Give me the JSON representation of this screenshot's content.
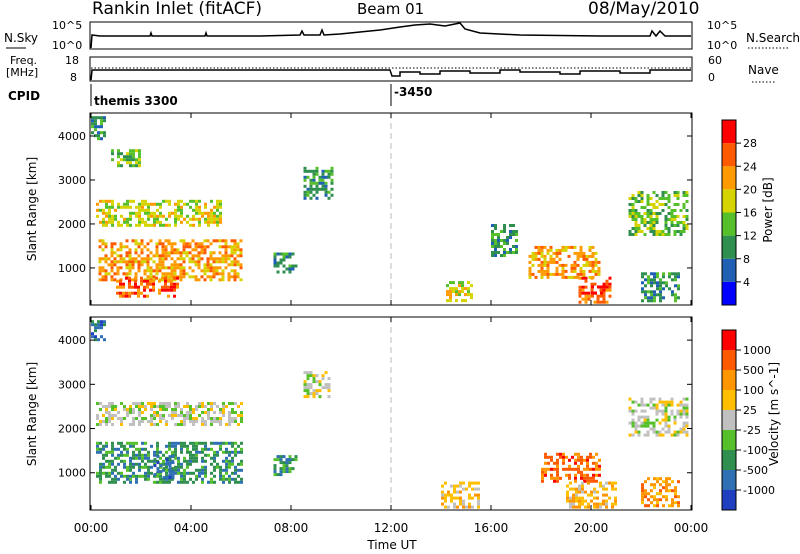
{
  "header": {
    "title": "Rankin Inlet (fitACF)",
    "beam": "Beam 01",
    "date": "08/May/2010"
  },
  "nsky_panel": {
    "left_label": "N.Sky",
    "right_label": "N.Search",
    "left_ticks": [
      "10^5",
      "10^0"
    ],
    "right_ticks": [
      "10^5",
      "10^0"
    ]
  },
  "freq_panel": {
    "left_label_top": "Freq.",
    "left_label_bottom": "[MHz]",
    "right_label": "Nave",
    "left_ticks": [
      "18",
      "8"
    ],
    "right_ticks": [
      "60",
      "0"
    ]
  },
  "cpid_panel": {
    "label": "CPID",
    "mode_1": "themis 3300",
    "mode_2": "-3450"
  },
  "axes": {
    "ylabel": "Slant Range [km]",
    "xlabel": "Time UT",
    "x_ticks": [
      "00:00",
      "04:00",
      "08:00",
      "12:00",
      "16:00",
      "20:00",
      "00:00"
    ],
    "y_ticks": [
      "1000",
      "2000",
      "3000",
      "4000"
    ]
  },
  "power_colorbar": {
    "label": "Power [dB]",
    "ticks": [
      "4",
      "8",
      "12",
      "16",
      "20",
      "24",
      "28"
    ],
    "colors": [
      "#0000ff",
      "#1f5fb4",
      "#2f8f4f",
      "#55c02a",
      "#d6d400",
      "#ff9a00",
      "#ff5a00",
      "#ff0000"
    ]
  },
  "velocity_colorbar": {
    "label": "Velocity [m s^-1]",
    "ticks": [
      "1000",
      "500",
      "100",
      "25",
      "-25",
      "-100",
      "-500",
      "-1000"
    ],
    "colors": [
      "#1f3fc0",
      "#2f6fb4",
      "#2f8f4f",
      "#55c02a",
      "#c0c0c0",
      "#ffbf00",
      "#ff9500",
      "#ff5a00",
      "#ff0000"
    ]
  },
  "chart_data": [
    {
      "type": "heatmap",
      "name": "power",
      "xlim": [
        0,
        24
      ],
      "ylim": [
        180,
        4500
      ],
      "regions": [
        {
          "t0": 0.0,
          "t1": 0.5,
          "r0": 3950,
          "r1": 4450,
          "level": 2
        },
        {
          "t0": 0.8,
          "t1": 1.9,
          "r0": 3300,
          "r1": 3700,
          "level": 3
        },
        {
          "t0": 0.2,
          "t1": 5.2,
          "r0": 2000,
          "r1": 2550,
          "level": 4
        },
        {
          "t0": 0.3,
          "t1": 6.0,
          "r0": 750,
          "r1": 1650,
          "level": 5
        },
        {
          "t0": 1.0,
          "t1": 3.5,
          "r0": 350,
          "r1": 800,
          "level": 6
        },
        {
          "t0": 8.5,
          "t1": 9.6,
          "r0": 2600,
          "r1": 3300,
          "level": 2
        },
        {
          "t0": 7.3,
          "t1": 8.2,
          "r0": 900,
          "r1": 1350,
          "level": 2
        },
        {
          "t0": 14.2,
          "t1": 15.2,
          "r0": 250,
          "r1": 700,
          "level": 4
        },
        {
          "t0": 17.5,
          "t1": 20.3,
          "r0": 750,
          "r1": 1500,
          "level": 5
        },
        {
          "t0": 19.5,
          "t1": 20.8,
          "r0": 250,
          "r1": 800,
          "level": 6
        },
        {
          "t0": 20.0,
          "t1": 20.6,
          "r0": 350,
          "r1": 600,
          "level": 7
        },
        {
          "t0": 21.5,
          "t1": 23.8,
          "r0": 1750,
          "r1": 2750,
          "level": 3
        },
        {
          "t0": 16.0,
          "t1": 17.0,
          "r0": 1300,
          "r1": 2000,
          "level": 2
        },
        {
          "t0": 22.0,
          "t1": 23.5,
          "r0": 250,
          "r1": 900,
          "level": 2
        }
      ]
    },
    {
      "type": "heatmap",
      "name": "velocity",
      "xlim": [
        0,
        24
      ],
      "ylim": [
        180,
        4500
      ],
      "regions": [
        {
          "t0": 0.0,
          "t1": 0.5,
          "r0": 4000,
          "r1": 4450,
          "level": 1
        },
        {
          "t0": 0.2,
          "t1": 6.0,
          "r0": 2100,
          "r1": 2600,
          "level": 4
        },
        {
          "t0": 0.2,
          "t1": 6.0,
          "r0": 800,
          "r1": 1700,
          "level": 2
        },
        {
          "t0": 2.5,
          "t1": 3.3,
          "r0": 900,
          "r1": 1400,
          "level": 1
        },
        {
          "t0": 8.5,
          "t1": 9.5,
          "r0": 2700,
          "r1": 3300,
          "level": 4
        },
        {
          "t0": 7.3,
          "t1": 8.2,
          "r0": 950,
          "r1": 1400,
          "level": 2
        },
        {
          "t0": 14.0,
          "t1": 15.5,
          "r0": 250,
          "r1": 800,
          "level": 5
        },
        {
          "t0": 18.0,
          "t1": 20.3,
          "r0": 800,
          "r1": 1450,
          "level": 7
        },
        {
          "t0": 19.0,
          "t1": 21.0,
          "r0": 250,
          "r1": 800,
          "level": 5
        },
        {
          "t0": 21.5,
          "t1": 23.8,
          "r0": 1850,
          "r1": 2700,
          "level": 4
        },
        {
          "t0": 22.0,
          "t1": 23.5,
          "r0": 250,
          "r1": 900,
          "level": 6
        }
      ]
    }
  ]
}
